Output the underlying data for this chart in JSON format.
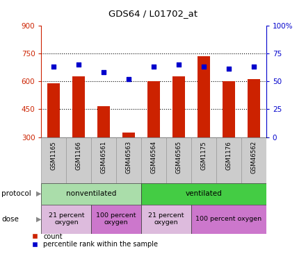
{
  "title": "GDS64 / L01702_at",
  "samples": [
    "GSM1165",
    "GSM1166",
    "GSM46561",
    "GSM46563",
    "GSM46564",
    "GSM46565",
    "GSM1175",
    "GSM1176",
    "GSM46562"
  ],
  "counts": [
    590,
    625,
    465,
    325,
    600,
    625,
    735,
    600,
    610
  ],
  "percentiles": [
    63,
    65,
    58,
    52,
    63,
    65,
    63,
    61,
    63
  ],
  "ylim_left": [
    300,
    900
  ],
  "ylim_right": [
    0,
    100
  ],
  "yticks_left": [
    300,
    450,
    600,
    750,
    900
  ],
  "yticks_right": [
    0,
    25,
    50,
    75,
    100
  ],
  "bar_color": "#cc2200",
  "dot_color": "#0000cc",
  "plot_bg": "#ffffff",
  "left_axis_color": "#cc2200",
  "right_axis_color": "#0000cc",
  "bar_width": 0.5,
  "protocol_groups": [
    {
      "label": "nonventilated",
      "start": 0,
      "end": 4,
      "color": "#aaddaa"
    },
    {
      "label": "ventilated",
      "start": 4,
      "end": 9,
      "color": "#44cc44"
    }
  ],
  "dose_groups": [
    {
      "label": "21 percent\noxygen",
      "start": 0,
      "end": 2,
      "color": "#ddbbdd"
    },
    {
      "label": "100 percent\noxygen",
      "start": 2,
      "end": 4,
      "color": "#cc77cc"
    },
    {
      "label": "21 percent\noxygen",
      "start": 4,
      "end": 6,
      "color": "#ddbbdd"
    },
    {
      "label": "100 percent oxygen",
      "start": 6,
      "end": 9,
      "color": "#cc77cc"
    }
  ],
  "legend_items": [
    {
      "label": "count",
      "color": "#cc2200"
    },
    {
      "label": "percentile rank within the sample",
      "color": "#0000cc"
    }
  ]
}
